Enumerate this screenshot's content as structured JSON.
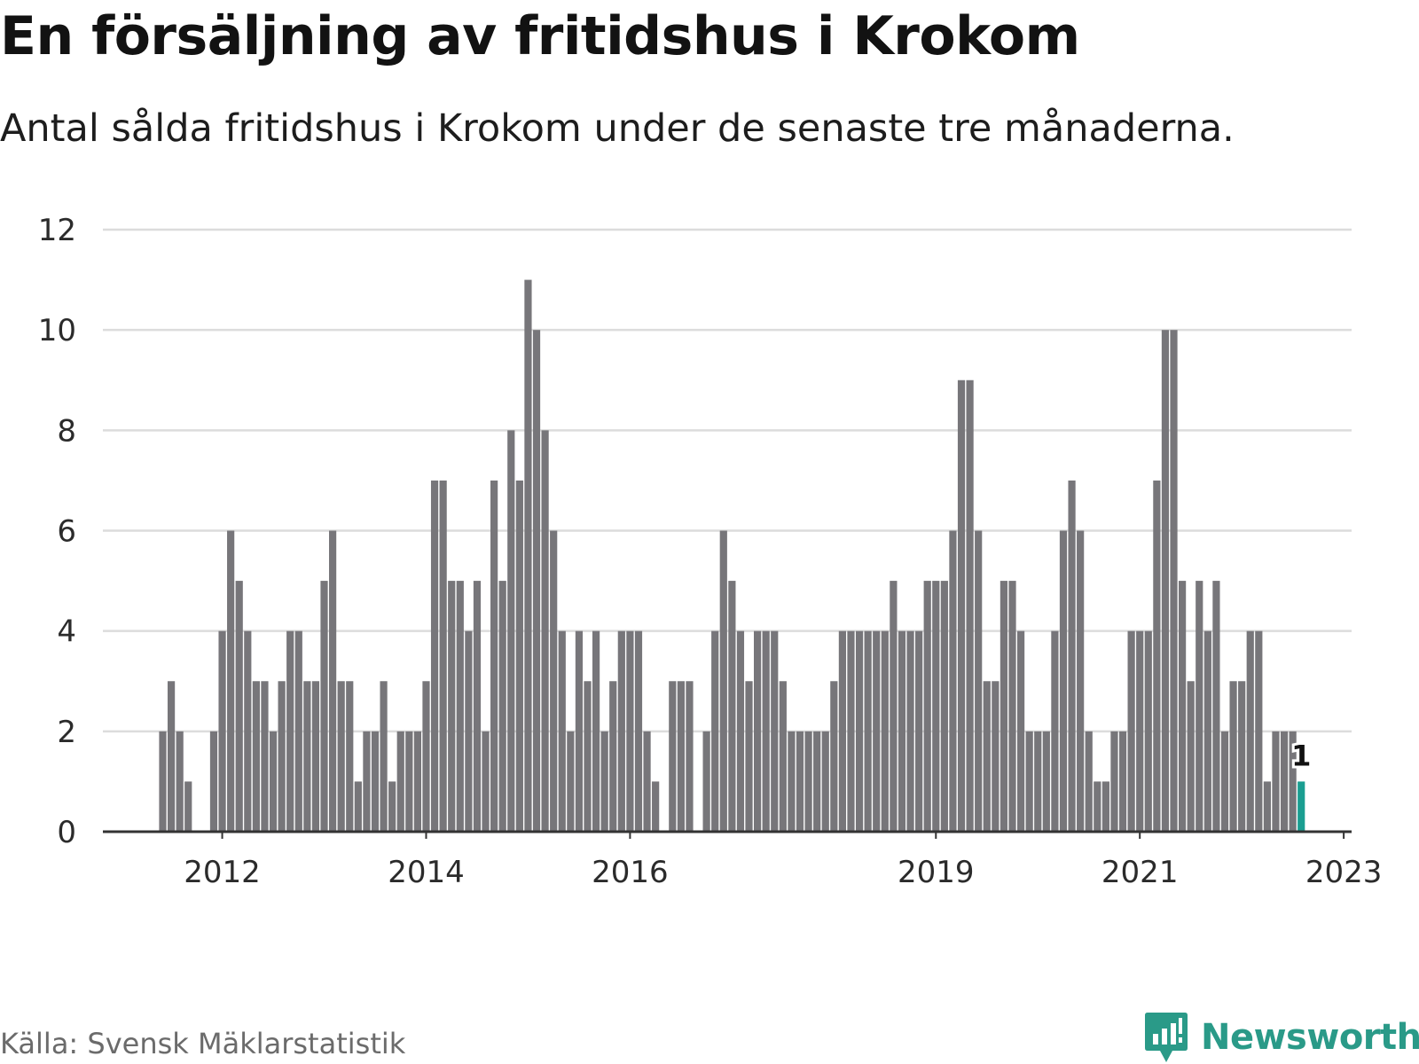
{
  "header": {
    "title": "En försäljning av fritidshus i Krokom",
    "subtitle": "Antal sålda fritidshus i Krokom under de senaste tre månaderna."
  },
  "footer": {
    "source": "Källa: Svensk Mäklarstatistik",
    "brand": "Newsworthy"
  },
  "colors": {
    "bar": "#77767a",
    "highlight": "#1a9e91",
    "grid": "#dcdcdc",
    "axis": "#333333",
    "brand": "#2a9a88"
  },
  "icons": {
    "brand_logo": "newsworthy-logo-icon"
  },
  "chart_data": {
    "type": "bar",
    "ylim": [
      0,
      12
    ],
    "yticks": [
      0,
      2,
      4,
      6,
      8,
      10,
      12
    ],
    "grid": true,
    "xticks": [
      "2012",
      "2014",
      "2016",
      "2019",
      "2021",
      "2023"
    ],
    "xtick_positions": [
      7,
      31,
      55,
      91,
      115,
      139
    ],
    "values": [
      2,
      3,
      2,
      1,
      null,
      null,
      2,
      4,
      6,
      5,
      4,
      3,
      3,
      2,
      3,
      4,
      4,
      3,
      3,
      5,
      6,
      3,
      3,
      1,
      2,
      2,
      3,
      1,
      2,
      2,
      2,
      3,
      7,
      7,
      5,
      5,
      4,
      5,
      2,
      7,
      5,
      8,
      7,
      11,
      10,
      8,
      6,
      4,
      2,
      4,
      3,
      4,
      2,
      3,
      4,
      4,
      4,
      2,
      1,
      null,
      3,
      3,
      3,
      null,
      2,
      4,
      6,
      5,
      4,
      3,
      4,
      4,
      4,
      3,
      2,
      2,
      2,
      2,
      2,
      3,
      4,
      4,
      4,
      4,
      4,
      4,
      5,
      4,
      4,
      4,
      5,
      5,
      5,
      6,
      9,
      9,
      6,
      3,
      3,
      5,
      5,
      4,
      2,
      2,
      2,
      4,
      6,
      7,
      6,
      2,
      1,
      1,
      2,
      2,
      4,
      4,
      4,
      7,
      10,
      10,
      5,
      3,
      5,
      4,
      5,
      2,
      3,
      3,
      4,
      4,
      1,
      2,
      2,
      2,
      1
    ],
    "highlight_last": true,
    "last_value_label": "1"
  }
}
